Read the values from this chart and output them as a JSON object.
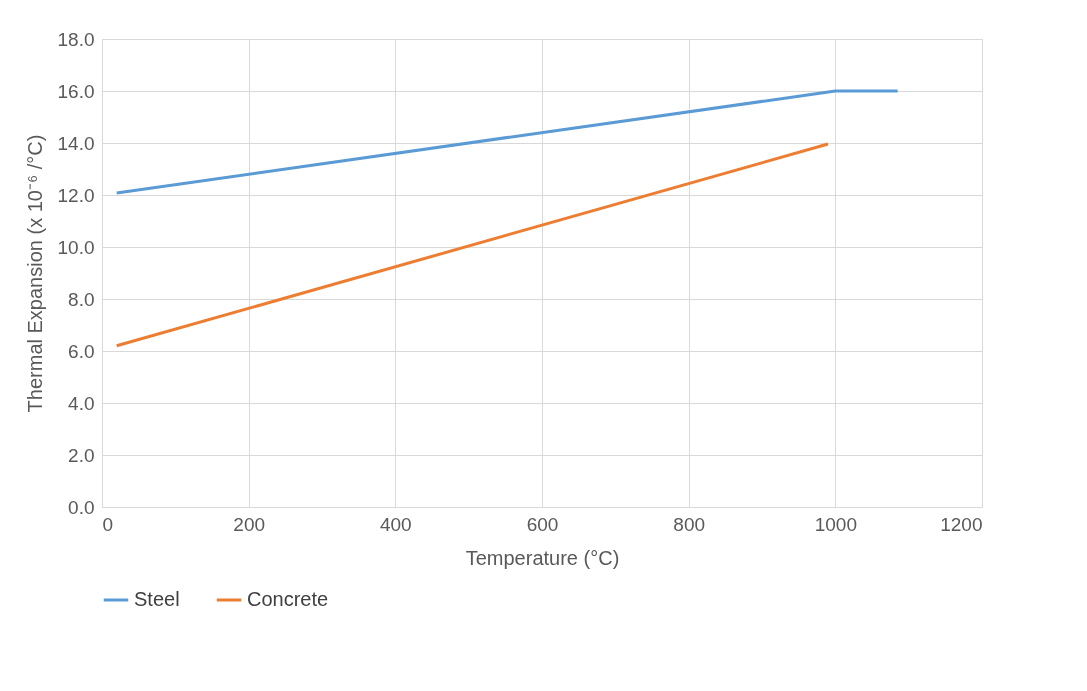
{
  "chart_data": {
    "type": "line",
    "xlabel": "Temperature (°C)",
    "ylabel": "Thermal Expansion (x 10⁻⁶ /°C)",
    "series": [
      {
        "name": "Steel",
        "color": "#5b9bd5",
        "x": [
          20,
          1000,
          1085
        ],
        "values": [
          12.08,
          16.0,
          16.0
        ]
      },
      {
        "name": "Concrete",
        "color": "#ed7d31",
        "x": [
          20,
          990
        ],
        "values": [
          6.2,
          13.96
        ]
      }
    ],
    "xlim": [
      0,
      1200
    ],
    "xticks": [
      0,
      200,
      400,
      600,
      800,
      1000,
      1200
    ],
    "ylim": [
      0,
      18
    ],
    "yticks": [
      {
        "value": 0,
        "label": "0.0"
      },
      {
        "value": 2,
        "label": "2.0"
      },
      {
        "value": 4,
        "label": "4.0"
      },
      {
        "value": 6,
        "label": "6.0"
      },
      {
        "value": 8,
        "label": "8.0"
      },
      {
        "value": 10,
        "label": "10.0"
      },
      {
        "value": 12,
        "label": "12.0"
      },
      {
        "value": 14,
        "label": "14.0"
      },
      {
        "value": 16,
        "label": "16.0"
      },
      {
        "value": 18,
        "label": "18.0"
      }
    ],
    "grid": true,
    "legend": "bottom",
    "marker": "none",
    "line_style": "solid"
  }
}
